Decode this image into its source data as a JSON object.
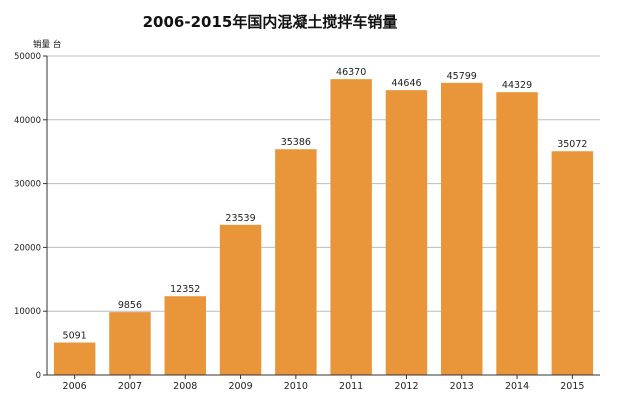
{
  "chart_data": {
    "type": "bar",
    "title": "2006-2015年国内混凝土搅拌车销量",
    "ylabel": "销量 台",
    "xlabel": "",
    "categories": [
      "2006",
      "2007",
      "2008",
      "2009",
      "2010",
      "2011",
      "2012",
      "2013",
      "2014",
      "2015"
    ],
    "values": [
      5091,
      9856,
      12352,
      23539,
      35386,
      46370,
      44646,
      45799,
      44329,
      35072
    ],
    "data_labels": [
      "5091",
      "9856",
      "12352",
      "23539",
      "35386",
      "46370",
      "44646",
      "45799",
      "44329",
      "35072"
    ],
    "ylim": [
      0,
      50000
    ],
    "yticks": [
      0,
      10000,
      20000,
      30000,
      40000,
      50000
    ],
    "ytick_labels": [
      "0",
      "10000",
      "20000",
      "30000",
      "40000",
      "50000"
    ],
    "grid": true,
    "legend": "none",
    "colors": {
      "bar": "#E9963A",
      "grid": "#bdbdbd",
      "axis": "#333333"
    }
  }
}
